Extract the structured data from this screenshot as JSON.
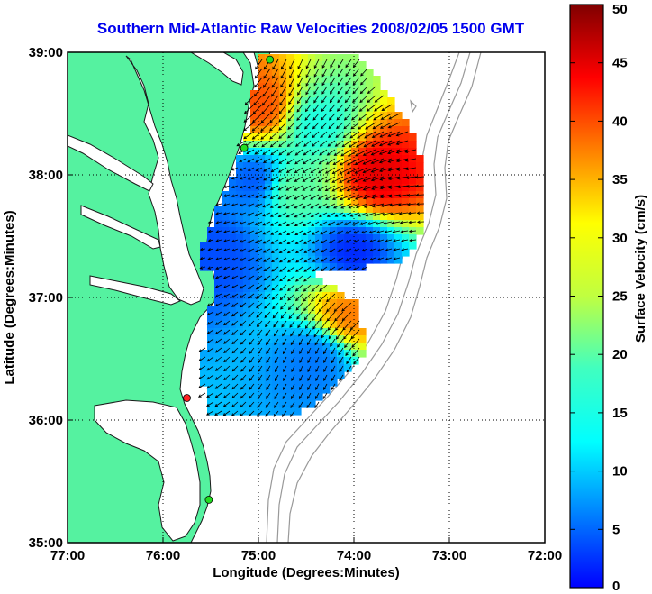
{
  "title": "Southern Mid-Atlantic Raw Velocities 2008/02/05 1500 GMT",
  "colors": {
    "land": "#55f2a0",
    "frame": "#000000",
    "title": "#0000ee",
    "station_active": "#22dd22",
    "station_inactive": "#ff2222",
    "bathymetry": "#999999"
  },
  "map": {
    "xlabel": "Longitude (Degrees:Minutes)",
    "ylabel": "Latitude (Degrees:Minutes)",
    "lon_range": [
      -77,
      -72
    ],
    "lat_range": [
      35,
      39
    ],
    "x_ticks": [
      {
        "value": -77,
        "label": "77:00"
      },
      {
        "value": -76,
        "label": "76:00"
      },
      {
        "value": -75,
        "label": "75:00"
      },
      {
        "value": -74,
        "label": "74:00"
      },
      {
        "value": -73,
        "label": "73:00"
      },
      {
        "value": -72,
        "label": "72:00"
      }
    ],
    "y_ticks": [
      {
        "value": 39,
        "label": "39:00"
      },
      {
        "value": 38,
        "label": "38:00"
      },
      {
        "value": 37,
        "label": "37:00"
      },
      {
        "value": 36,
        "label": "36:00"
      },
      {
        "value": 35,
        "label": "35:00"
      }
    ],
    "grid": "dotted",
    "stations": [
      {
        "lon": -74.88,
        "lat": 38.94,
        "status": "active"
      },
      {
        "lon": -75.15,
        "lat": 38.22,
        "status": "active"
      },
      {
        "lon": -75.75,
        "lat": 36.18,
        "status": "inactive"
      },
      {
        "lon": -75.52,
        "lat": 35.35,
        "status": "active"
      }
    ]
  },
  "colorbar": {
    "label": "Surface Velocity (cm/s)",
    "min": 0,
    "max": 50,
    "ticks": [
      {
        "value": 50,
        "label": "50"
      },
      {
        "value": 45,
        "label": "45"
      },
      {
        "value": 40,
        "label": "40"
      },
      {
        "value": 35,
        "label": "35"
      },
      {
        "value": 30,
        "label": "30"
      },
      {
        "value": 25,
        "label": "25"
      },
      {
        "value": 20,
        "label": "20"
      },
      {
        "value": 15,
        "label": "15"
      },
      {
        "value": 10,
        "label": "10"
      },
      {
        "value": 5,
        "label": "5"
      },
      {
        "value": 0,
        "label": "0"
      }
    ]
  },
  "chart_data": {
    "type": "heatmap",
    "title": "Southern Mid-Atlantic Raw Velocities 2008/02/05 1500 GMT",
    "xlabel": "Longitude (Degrees:Minutes)",
    "ylabel": "Latitude (Degrees:Minutes)",
    "xlim": [
      -77,
      -72
    ],
    "ylim": [
      35,
      39
    ],
    "colorbar_range": [
      0,
      50
    ],
    "velocity_hotspots": [
      {
        "lon": -74.98,
        "lat": 38.55,
        "speed": 40
      },
      {
        "lon": -73.75,
        "lat": 38.0,
        "speed": 45
      },
      {
        "lon": -74.05,
        "lat": 36.88,
        "speed": 38
      },
      {
        "lon": -74.0,
        "lat": 37.35,
        "speed": 8
      },
      {
        "lon": -75.0,
        "lat": 37.95,
        "speed": 10
      },
      {
        "lon": -75.45,
        "lat": 37.35,
        "speed": 10
      },
      {
        "lon": -74.4,
        "lat": 36.5,
        "speed": 12
      },
      {
        "lon": -74.7,
        "lat": 37.9,
        "speed": 24
      },
      {
        "lon": -74.4,
        "lat": 38.4,
        "speed": 20
      }
    ]
  }
}
